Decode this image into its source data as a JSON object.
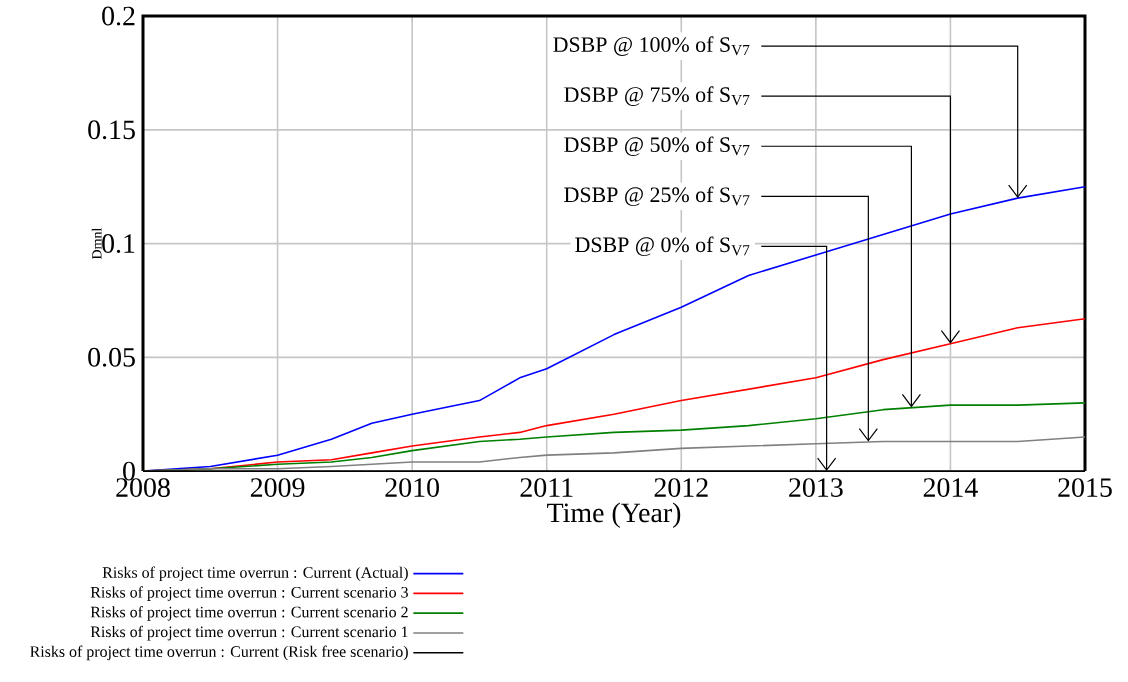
{
  "chart_data": {
    "type": "line",
    "xlabel": "Time (Year)",
    "ylabel": "Dmnl",
    "x": [
      2008,
      2008.5,
      2009,
      2009.4,
      2009.7,
      2010,
      2010.5,
      2010.8,
      2011,
      2011.5,
      2012,
      2012.5,
      2013,
      2013.5,
      2014,
      2014.5,
      2015
    ],
    "series": [
      {
        "name": "Risks of project time overrun : Current (Actual)",
        "color": "#0000ff",
        "values": [
          0,
          0.002,
          0.007,
          0.014,
          0.021,
          0.025,
          0.031,
          0.041,
          0.045,
          0.06,
          0.072,
          0.086,
          0.095,
          0.104,
          0.113,
          0.12,
          0.125
        ]
      },
      {
        "name": "Risks of project time overrun : Current scenario 3",
        "color": "#ff0000",
        "values": [
          0,
          0.001,
          0.004,
          0.005,
          0.008,
          0.011,
          0.015,
          0.017,
          0.02,
          0.025,
          0.031,
          0.036,
          0.041,
          0.049,
          0.056,
          0.063,
          0.067
        ]
      },
      {
        "name": "Risks of project time overrun : Current scenario 2",
        "color": "#008000",
        "values": [
          0,
          0.001,
          0.003,
          0.004,
          0.006,
          0.009,
          0.013,
          0.014,
          0.015,
          0.017,
          0.018,
          0.02,
          0.023,
          0.027,
          0.029,
          0.029,
          0.03
        ]
      },
      {
        "name": "Risks of project time overrun : Current scenario 1",
        "color": "#808080",
        "values": [
          0,
          0.001,
          0.001,
          0.002,
          0.003,
          0.004,
          0.004,
          0.006,
          0.007,
          0.008,
          0.01,
          0.011,
          0.012,
          0.013,
          0.013,
          0.013,
          0.015
        ]
      },
      {
        "name": "Risks of project time overrun : Current (Risk free scenario)",
        "color": "#000000",
        "values": [
          0,
          0,
          0,
          0,
          0,
          0,
          0,
          0,
          0,
          0,
          0,
          0,
          0,
          0,
          0,
          0,
          0
        ]
      }
    ],
    "xlim": [
      2008,
      2015
    ],
    "ylim": [
      0,
      0.2
    ],
    "xticks": [
      2008,
      2009,
      2010,
      2011,
      2012,
      2013,
      2014,
      2015
    ],
    "yticks": [
      0,
      0.05,
      0.1,
      0.15,
      0.2
    ],
    "grid": true,
    "legend": "bottom",
    "annotations": [
      {
        "text": "DSBP @ 100% of S$_{V7}$",
        "x": 2014.5,
        "y": 0.12
      },
      {
        "text": "DSBP @ 75% of S$_{V7}$",
        "x": 2014.0,
        "y": 0.056
      },
      {
        "text": "DSBP @ 50% of S$_{V7}$",
        "x": 2013.71,
        "y": 0.028
      },
      {
        "text": "DSBP @ 25% of S$_{V7}$",
        "x": 2013.39,
        "y": 0.013
      },
      {
        "text": "DSBP @ 0% of S$_{V7}$",
        "x": 2013.08,
        "y": 0
      }
    ]
  }
}
